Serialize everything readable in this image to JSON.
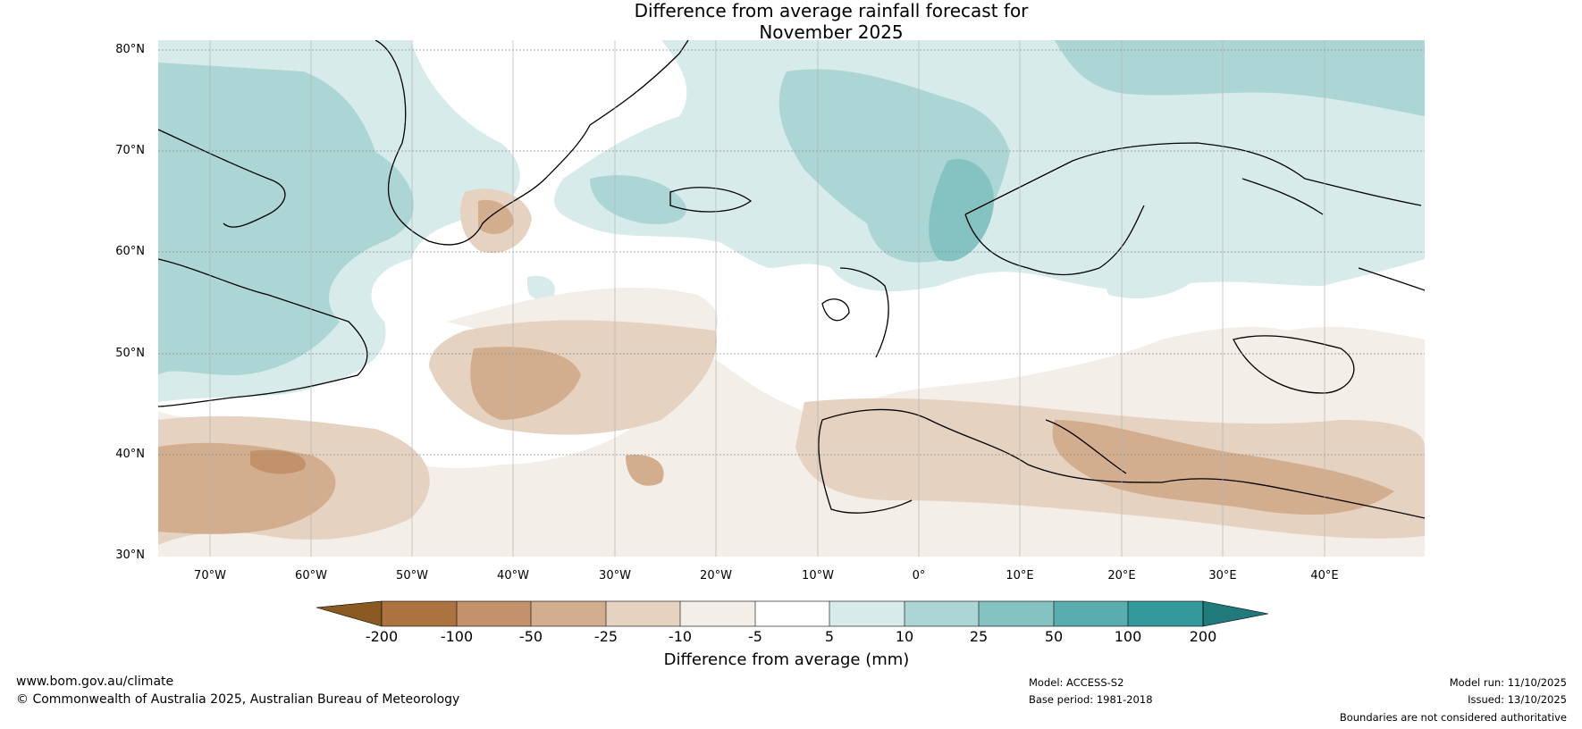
{
  "title": {
    "line1": "Difference from average rainfall forecast for",
    "line2": "November 2025"
  },
  "axes": {
    "lat_labels": [
      "80°N",
      "70°N",
      "60°N",
      "50°N",
      "40°N",
      "30°N"
    ],
    "lon_labels": [
      "70°W",
      "60°W",
      "50°W",
      "40°W",
      "30°W",
      "20°W",
      "10°W",
      "0°",
      "10°E",
      "20°E",
      "30°E",
      "40°E"
    ]
  },
  "legend": {
    "ticks": [
      "-200",
      "-100",
      "-50",
      "-25",
      "-10",
      "-5",
      "5",
      "10",
      "25",
      "50",
      "100",
      "200"
    ],
    "title": "Difference from average (mm)",
    "colors": [
      "#8b5a23",
      "#ab733f",
      "#c3926a",
      "#d3ae8e",
      "#e6d2c1",
      "#f3eee8",
      "#ffffff",
      "#d7ebea",
      "#acd6d6",
      "#85c3c3",
      "#5aadae",
      "#34999a",
      "#20797b"
    ]
  },
  "footer": {
    "website": "www.bom.gov.au/climate",
    "copyright": "© Commonwealth of Australia 2025, Australian Bureau of Meteorology",
    "model": "Model: ACCESS-S2",
    "base_period": "Base period: 1981-2018",
    "model_run": "Model run: 11/10/2025",
    "issued": "Issued: 13/10/2025",
    "disclaimer": "Boundaries are not considered authoritative"
  }
}
